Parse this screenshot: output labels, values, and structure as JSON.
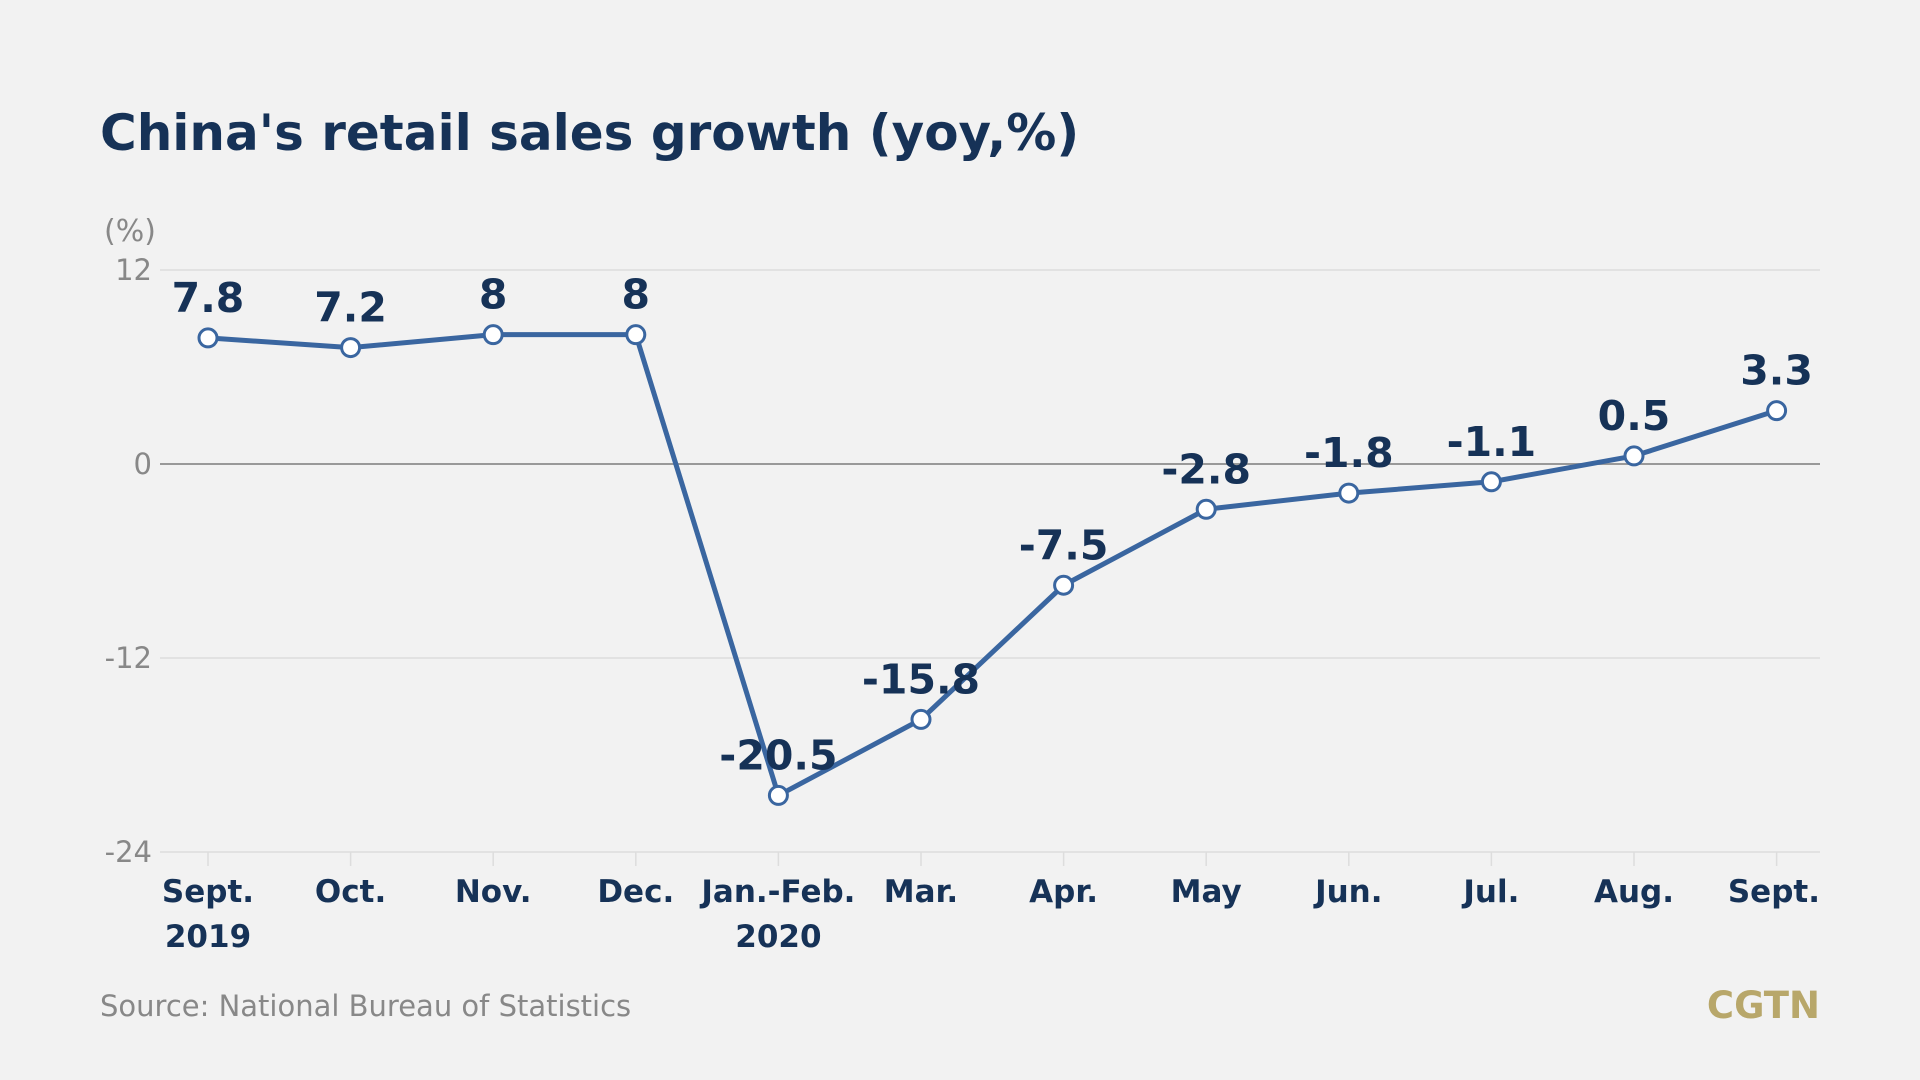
{
  "title": "China's retail sales growth (yoy,%)",
  "source": "Source: National Bureau of Statistics",
  "brand": "CGTN",
  "colors": {
    "background": "#f2f2f2",
    "title": "#163257",
    "line": "#3a66a0",
    "marker_fill": "#ffffff",
    "axis_text": "#888888",
    "gridline": "#dddddd",
    "zero_line": "#999999",
    "brand": "#b8a76a"
  },
  "chart_data": {
    "type": "line",
    "title": "China's retail sales growth (yoy,%)",
    "ylabel": "(%)",
    "ylim": [
      -24,
      12
    ],
    "yticks": [
      "12",
      "0",
      "-12",
      "-24"
    ],
    "grid": true,
    "categories": [
      [
        "Sept.",
        "2019"
      ],
      [
        "Oct."
      ],
      [
        "Nov."
      ],
      [
        "Dec."
      ],
      [
        "Jan.-Feb.",
        "2020"
      ],
      [
        "Mar."
      ],
      [
        "Apr."
      ],
      [
        "May"
      ],
      [
        "Jun."
      ],
      [
        "Jul."
      ],
      [
        "Aug."
      ],
      [
        "Sept."
      ]
    ],
    "series": [
      {
        "values": [
          7.8,
          7.2,
          8,
          8,
          -20.5,
          -15.8,
          -7.5,
          -2.8,
          -1.8,
          -1.1,
          0.5,
          3.3
        ],
        "data_labels": [
          "7.8",
          "7.2",
          "8",
          "8",
          "-20.5",
          "-15.8",
          "-7.5",
          "-2.8",
          "-1.8",
          "-1.1",
          "0.5",
          "3.3"
        ]
      }
    ]
  }
}
